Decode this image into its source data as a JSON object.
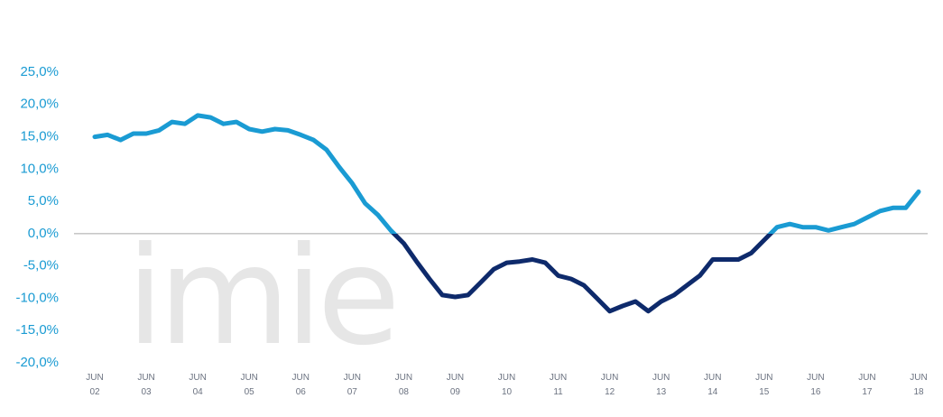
{
  "chart_data": {
    "type": "line",
    "watermark": "imie",
    "x": [
      "2002-06",
      "2002-09",
      "2002-12",
      "2003-03",
      "2003-06",
      "2003-09",
      "2003-12",
      "2004-03",
      "2004-06",
      "2004-09",
      "2004-12",
      "2005-03",
      "2005-06",
      "2005-09",
      "2005-12",
      "2006-03",
      "2006-06",
      "2006-09",
      "2006-12",
      "2007-03",
      "2007-06",
      "2007-09",
      "2007-12",
      "2008-03",
      "2008-06",
      "2008-09",
      "2008-12",
      "2009-03",
      "2009-06",
      "2009-09",
      "2009-12",
      "2010-03",
      "2010-06",
      "2010-09",
      "2010-12",
      "2011-03",
      "2011-06",
      "2011-09",
      "2011-12",
      "2012-03",
      "2012-06",
      "2012-09",
      "2012-12",
      "2013-03",
      "2013-06",
      "2013-09",
      "2013-12",
      "2014-03",
      "2014-06",
      "2014-09",
      "2014-12",
      "2015-03",
      "2015-06",
      "2015-09",
      "2015-12",
      "2016-03",
      "2016-06",
      "2016-09",
      "2016-12",
      "2017-03",
      "2017-06",
      "2017-09",
      "2017-12",
      "2018-03",
      "2018-06"
    ],
    "series": [
      {
        "values": [
          15,
          15.3,
          14.5,
          15.5,
          15.5,
          16,
          17.3,
          17,
          18.3,
          18,
          17,
          17.3,
          16.2,
          15.8,
          16.2,
          16,
          15.3,
          14.5,
          13,
          10.3,
          7.8,
          4.7,
          2.9,
          0.5,
          -1.5,
          -4.3,
          -7,
          -9.5,
          -9.8,
          -9.5,
          -7.5,
          -5.5,
          -4.5,
          -4.3,
          -4,
          -4.5,
          -6.5,
          -7,
          -8,
          -10,
          -12,
          -11.2,
          -10.5,
          -12,
          -10.5,
          -9.5,
          -8,
          -6.5,
          -4,
          -4,
          -4,
          -3,
          -1,
          1,
          1.5,
          1,
          1,
          0.5,
          1,
          1.5,
          2.5,
          3.5,
          4,
          4,
          6.5
        ],
        "color_positive": "#1a9bd3",
        "color_negative": "#0e2a6b"
      }
    ],
    "ylim": [
      -20,
      25
    ],
    "yticks": [
      {
        "value": 25,
        "label": "25,0%"
      },
      {
        "value": 20,
        "label": "20,0%"
      },
      {
        "value": 15,
        "label": "15,0%"
      },
      {
        "value": 10,
        "label": "10,0%"
      },
      {
        "value": 5,
        "label": "5,0%"
      },
      {
        "value": 0,
        "label": "0,0%"
      },
      {
        "value": -5,
        "label": "-5,0%"
      },
      {
        "value": -10,
        "label": "-10,0%"
      },
      {
        "value": -15,
        "label": "-15,0%"
      },
      {
        "value": -20,
        "label": "-20,0%"
      }
    ],
    "xlim": [
      "2002-06",
      "2018-06"
    ],
    "xticks": [
      {
        "value": "2002-06",
        "label": [
          "JUN",
          "02"
        ]
      },
      {
        "value": "2003-06",
        "label": [
          "JUN",
          "03"
        ]
      },
      {
        "value": "2004-06",
        "label": [
          "JUN",
          "04"
        ]
      },
      {
        "value": "2005-06",
        "label": [
          "JUN",
          "05"
        ]
      },
      {
        "value": "2006-06",
        "label": [
          "JUN",
          "06"
        ]
      },
      {
        "value": "2007-06",
        "label": [
          "JUN",
          "07"
        ]
      },
      {
        "value": "2008-06",
        "label": [
          "JUN",
          "08"
        ]
      },
      {
        "value": "2009-06",
        "label": [
          "JUN",
          "09"
        ]
      },
      {
        "value": "2010-06",
        "label": [
          "JUN",
          "10"
        ]
      },
      {
        "value": "2011-06",
        "label": [
          "JUN",
          "11"
        ]
      },
      {
        "value": "2012-06",
        "label": [
          "JUN",
          "12"
        ]
      },
      {
        "value": "2013-06",
        "label": [
          "JUN",
          "13"
        ]
      },
      {
        "value": "2014-06",
        "label": [
          "JUN",
          "14"
        ]
      },
      {
        "value": "2015-06",
        "label": [
          "JUN",
          "15"
        ]
      },
      {
        "value": "2016-06",
        "label": [
          "JUN",
          "16"
        ]
      },
      {
        "value": "2017-06",
        "label": [
          "JUN",
          "17"
        ]
      },
      {
        "value": "2018-06",
        "label": [
          "JUN",
          "18"
        ]
      }
    ],
    "zero_line_color": "#a6a6a6"
  }
}
